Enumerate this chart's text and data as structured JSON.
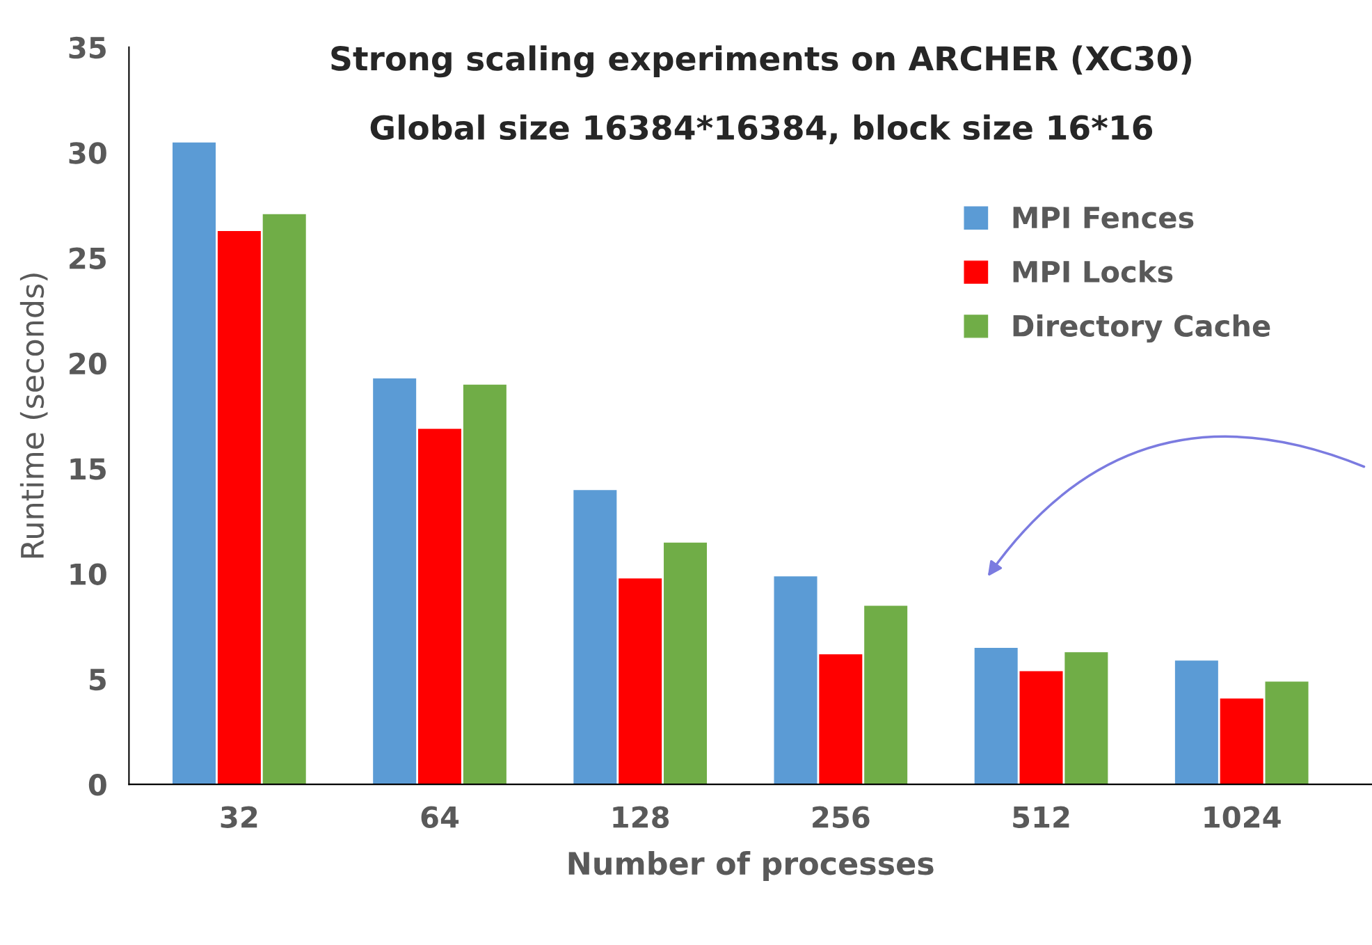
{
  "chart_data": {
    "type": "bar",
    "title": "Strong scaling experiments on ARCHER (XC30)",
    "subtitle": "Global size 16384*16384, block size 16*16",
    "xlabel": "Number of processes",
    "ylabel": "Runtime (seconds)",
    "categories": [
      "32",
      "64",
      "128",
      "256",
      "512",
      "1024"
    ],
    "series": [
      {
        "name": "MPI Fences",
        "color": "#5b9bd5",
        "values": [
          30.5,
          19.3,
          14.0,
          9.9,
          6.5,
          5.9
        ]
      },
      {
        "name": "MPI Locks",
        "color": "#ff0000",
        "values": [
          26.3,
          16.9,
          9.8,
          6.2,
          5.4,
          4.1
        ]
      },
      {
        "name": "Directory Cache",
        "color": "#70ad47",
        "values": [
          27.1,
          19.0,
          11.5,
          8.5,
          6.3,
          4.9
        ]
      }
    ],
    "ylim": [
      0,
      35
    ],
    "yticks": [
      0,
      5,
      10,
      15,
      20,
      25,
      30,
      35
    ],
    "grid": false,
    "legend": "top right"
  }
}
